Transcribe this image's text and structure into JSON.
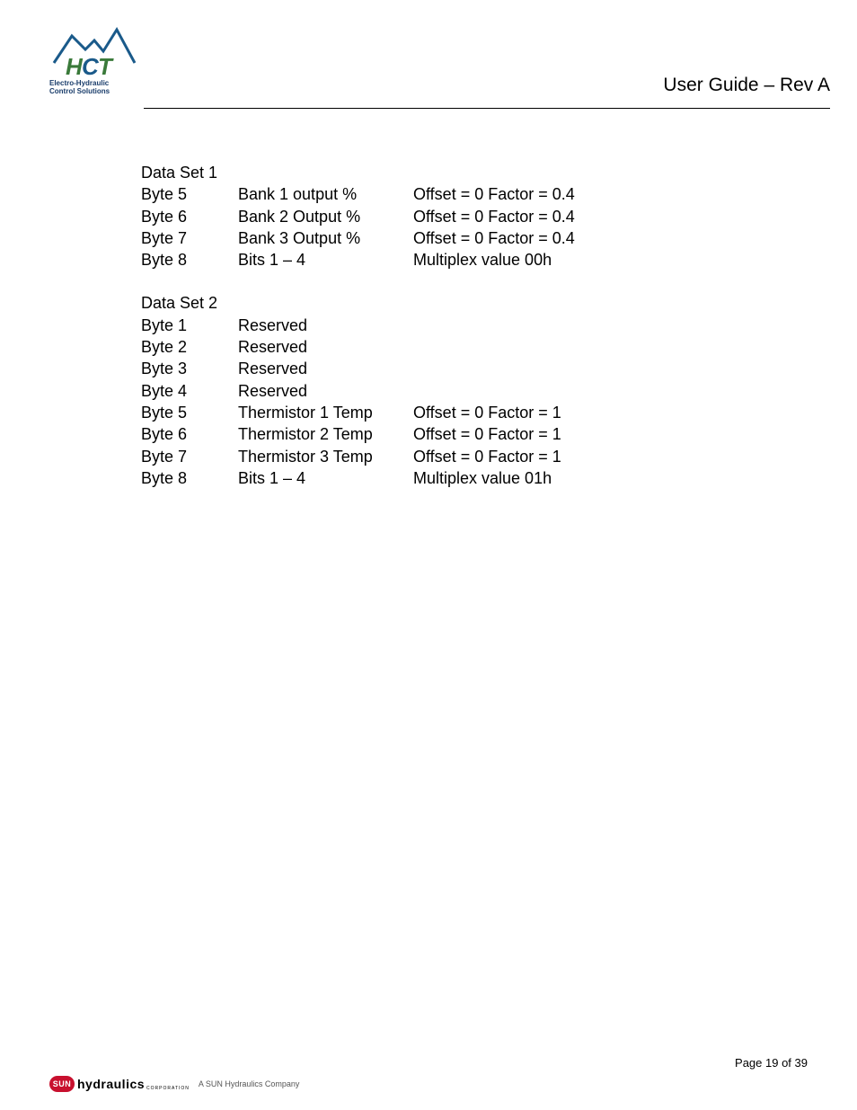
{
  "header": {
    "title": "User Guide – Rev A",
    "logo_line1": "Electro-Hydraulic",
    "logo_line2": "Control Solutions"
  },
  "dataset1": {
    "title": "Data Set 1",
    "rows": [
      {
        "byte": "Byte 5",
        "desc": "Bank 1 output %",
        "detail": "Offset = 0 Factor = 0.4"
      },
      {
        "byte": "Byte 6",
        "desc": "Bank 2 Output %",
        "detail": "Offset = 0 Factor = 0.4"
      },
      {
        "byte": "Byte 7",
        "desc": "Bank 3 Output %",
        "detail": "Offset = 0 Factor = 0.4"
      },
      {
        "byte": "Byte 8",
        "desc": "Bits 1 – 4",
        "detail": "Multiplex value 00h"
      }
    ]
  },
  "dataset2": {
    "title": "Data Set 2",
    "rows": [
      {
        "byte": "Byte 1",
        "desc": "Reserved",
        "detail": ""
      },
      {
        "byte": "Byte 2",
        "desc": "Reserved",
        "detail": ""
      },
      {
        "byte": "Byte 3",
        "desc": "Reserved",
        "detail": ""
      },
      {
        "byte": "Byte 4",
        "desc": "Reserved",
        "detail": ""
      },
      {
        "byte": "Byte 5",
        "desc": "Thermistor 1 Temp",
        "detail": "Offset = 0 Factor = 1"
      },
      {
        "byte": "Byte 6",
        "desc": "Thermistor 2 Temp",
        "detail": "Offset = 0 Factor = 1"
      },
      {
        "byte": "Byte 7",
        "desc": "Thermistor 3 Temp",
        "detail": "Offset = 0 Factor = 1"
      },
      {
        "byte": "Byte 8",
        "desc": "Bits 1 – 4",
        "detail": "Multiplex value 01h"
      }
    ]
  },
  "footer": {
    "sun_badge": "SUN",
    "sun_text": "hydraulics",
    "sun_corp": "CORPORATION",
    "company": "A SUN Hydraulics Company",
    "page": "Page 19 of 39"
  },
  "colors": {
    "text": "#000000",
    "logo_blue": "#1a5a8a",
    "logo_green": "#3a7a3a",
    "logo_navy": "#1a3d6b",
    "sun_red": "#c8102e",
    "rule": "#000000",
    "background": "#ffffff"
  }
}
